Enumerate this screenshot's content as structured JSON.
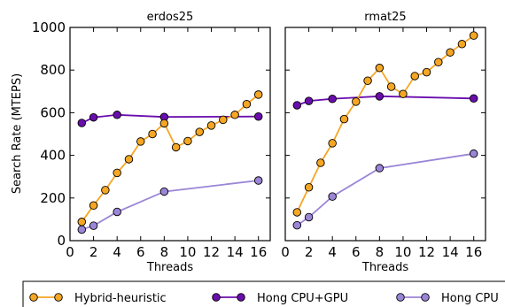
{
  "chart_data": [
    {
      "type": "line",
      "title": "erdos25",
      "xlabel": "Threads",
      "ylabel": "Search Rate (MTEPS)",
      "xlim": [
        0,
        17
      ],
      "ylim": [
        0,
        1000
      ],
      "xticks": [
        0,
        2,
        4,
        6,
        8,
        10,
        12,
        14,
        16
      ],
      "yticks": [
        0,
        200,
        400,
        600,
        800,
        1000
      ],
      "series": [
        {
          "name": "Hybrid-heuristic",
          "color": "#f5a623",
          "x": [
            1,
            2,
            3,
            4,
            5,
            6,
            7,
            8,
            9,
            10,
            11,
            12,
            13,
            14,
            15,
            16
          ],
          "y": [
            88,
            165,
            237,
            318,
            382,
            465,
            500,
            550,
            438,
            467,
            510,
            540,
            567,
            590,
            640,
            685
          ]
        },
        {
          "name": "Hong CPU+GPU",
          "color": "#6a0dad",
          "x": [
            1,
            2,
            4,
            8,
            16
          ],
          "y": [
            552,
            578,
            590,
            580,
            582
          ]
        },
        {
          "name": "Hong CPU",
          "color": "#9b85d6",
          "x": [
            1,
            2,
            4,
            8,
            16
          ],
          "y": [
            52,
            70,
            135,
            230,
            282
          ]
        }
      ]
    },
    {
      "type": "line",
      "title": "rmat25",
      "xlabel": "Threads",
      "ylabel": "",
      "xlim": [
        0,
        17
      ],
      "ylim": [
        0,
        1000
      ],
      "xticks": [
        0,
        2,
        4,
        6,
        8,
        10,
        12,
        14,
        16
      ],
      "yticks": [],
      "series": [
        {
          "name": "Hybrid-heuristic",
          "color": "#f5a623",
          "x": [
            1,
            2,
            3,
            4,
            5,
            6,
            7,
            8,
            9,
            10,
            11,
            12,
            13,
            14,
            15,
            16
          ],
          "y": [
            133,
            250,
            365,
            457,
            570,
            652,
            750,
            810,
            722,
            688,
            772,
            790,
            837,
            883,
            922,
            962
          ]
        },
        {
          "name": "Hong CPU+GPU",
          "color": "#6a0dad",
          "x": [
            1,
            2,
            4,
            8,
            16
          ],
          "y": [
            635,
            655,
            665,
            677,
            667
          ]
        },
        {
          "name": "Hong CPU",
          "color": "#9b85d6",
          "x": [
            1,
            2,
            4,
            8,
            16
          ],
          "y": [
            72,
            110,
            207,
            340,
            408
          ]
        }
      ]
    }
  ],
  "legend": {
    "placement": "bottom",
    "items": [
      {
        "name": "Hybrid-heuristic",
        "color": "#f5a623"
      },
      {
        "name": "Hong CPU+GPU",
        "color": "#6a0dad"
      },
      {
        "name": "Hong CPU",
        "color": "#9b85d6"
      }
    ]
  }
}
